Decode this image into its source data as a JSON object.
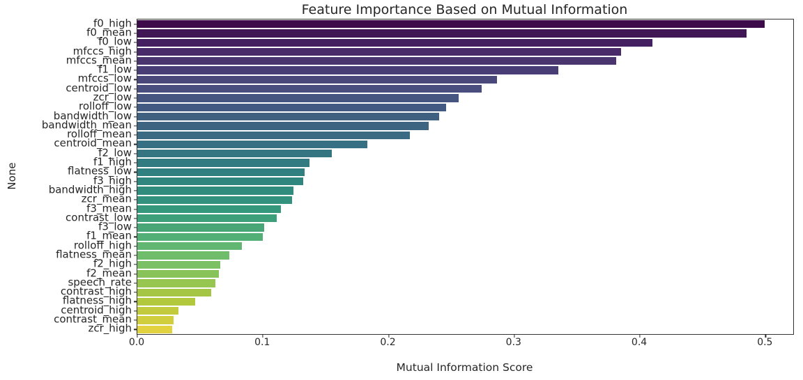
{
  "chart_data": {
    "type": "bar",
    "orientation": "horizontal",
    "title": "Feature Importance Based on Mutual Information",
    "xlabel": "Mutual Information Score",
    "ylabel": "None",
    "xlim": [
      0,
      0.522
    ],
    "xticks": [
      0.0,
      0.1,
      0.2,
      0.3,
      0.4,
      0.5
    ],
    "xtick_labels": [
      "0.0",
      "0.1",
      "0.2",
      "0.3",
      "0.4",
      "0.5"
    ],
    "grid": false,
    "legend": false,
    "colormap": "viridis (desaturated)",
    "categories": [
      "f0_high",
      "f0_mean",
      "f0_low",
      "mfccs_high",
      "mfccs_mean",
      "f1_low",
      "mfccs_low",
      "centroid_low",
      "zcr_low",
      "rolloff_low",
      "bandwidth_low",
      "bandwidth_mean",
      "rolloff_mean",
      "centroid_mean",
      "f2_low",
      "f1_high",
      "flatness_low",
      "f3_high",
      "bandwidth_high",
      "zcr_mean",
      "f3_mean",
      "contrast_low",
      "f3_low",
      "f1_mean",
      "rolloff_high",
      "flatness_mean",
      "f2_high",
      "f2_mean",
      "speech_rate",
      "contrast_high",
      "flatness_high",
      "centroid_high",
      "contrast_mean",
      "zcr_high"
    ],
    "values": [
      0.499,
      0.485,
      0.41,
      0.385,
      0.381,
      0.335,
      0.286,
      0.274,
      0.256,
      0.246,
      0.24,
      0.232,
      0.217,
      0.183,
      0.155,
      0.137,
      0.133,
      0.132,
      0.124,
      0.123,
      0.114,
      0.111,
      0.101,
      0.1,
      0.083,
      0.073,
      0.066,
      0.065,
      0.062,
      0.059,
      0.046,
      0.033,
      0.029,
      0.028
    ],
    "bar_colors": [
      "#3E0B4A",
      "#411654",
      "#442060",
      "#482B68",
      "#4A356F",
      "#493D75",
      "#4A477B",
      "#494E7F",
      "#465480",
      "#425A81",
      "#406082",
      "#3D6582",
      "#3A6B82",
      "#377082",
      "#357581",
      "#327B80",
      "#2F807F",
      "#2F867F",
      "#308C7D",
      "#32927D",
      "#35987C",
      "#3EA07A",
      "#49A777",
      "#52AF75",
      "#61B671",
      "#6FBC6B",
      "#7BC064",
      "#88C35A",
      "#96C550",
      "#A5C645",
      "#B3C93D",
      "#C2CB3E",
      "#D1CE3E",
      "#E2D240"
    ],
    "text_color": "#262626",
    "spine_color": "#333333",
    "background_color": "#ffffff"
  }
}
